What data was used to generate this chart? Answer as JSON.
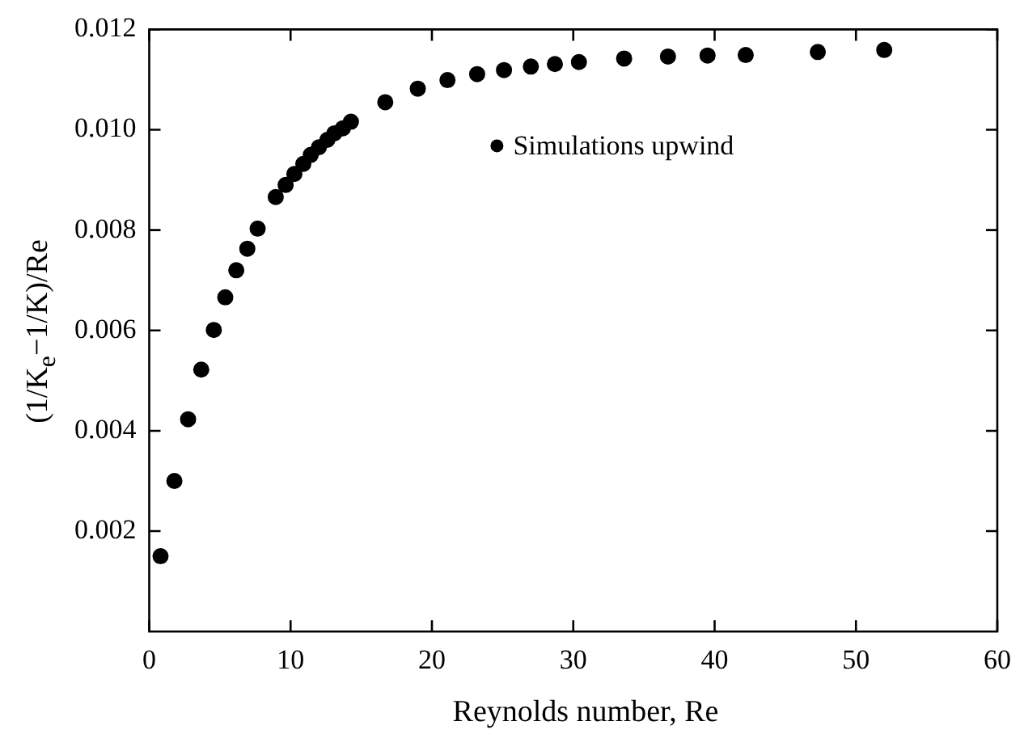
{
  "chart_data": {
    "type": "scatter",
    "xlabel": "Reynolds number, Re",
    "ylabel": "(1/K$_{e}$−1/K)/Re",
    "x": [
      0.8,
      1.78,
      2.75,
      3.68,
      4.57,
      5.38,
      6.16,
      6.94,
      7.67,
      8.95,
      9.65,
      10.27,
      10.9,
      11.43,
      12.0,
      12.6,
      13.1,
      13.7,
      14.27,
      16.7,
      19.0,
      21.1,
      23.2,
      25.1,
      27.0,
      28.7,
      30.4,
      33.6,
      36.7,
      39.5,
      42.2,
      47.3,
      52.0
    ],
    "series": [
      {
        "name": "Simulations upwind",
        "color": "#000000",
        "values": [
          0.0015,
          0.003,
          0.00423,
          0.00522,
          0.00601,
          0.00666,
          0.0072,
          0.00763,
          0.00803,
          0.00866,
          0.0089,
          0.00912,
          0.00932,
          0.0095,
          0.00965,
          0.0098,
          0.00993,
          0.01003,
          0.01016,
          0.01055,
          0.01082,
          0.01099,
          0.01111,
          0.01119,
          0.01126,
          0.01131,
          0.01135,
          0.01142,
          0.01146,
          0.01148,
          0.01149,
          0.01155,
          0.01159
        ]
      }
    ],
    "xlim": [
      0,
      60
    ],
    "xticks": [
      0,
      10,
      20,
      30,
      40,
      50,
      60
    ],
    "ylim": [
      0,
      0.012
    ],
    "yticks": [
      {
        "value": 0.002,
        "label": "0.002"
      },
      {
        "value": 0.004,
        "label": "0.004"
      },
      {
        "value": 0.006,
        "label": "0.006"
      },
      {
        "value": 0.008,
        "label": "0.008"
      },
      {
        "value": 0.01,
        "label": "0.010"
      },
      {
        "value": 0.012,
        "label": "0.012"
      }
    ],
    "legend": "top right",
    "marker": "circle",
    "grid": false
  }
}
